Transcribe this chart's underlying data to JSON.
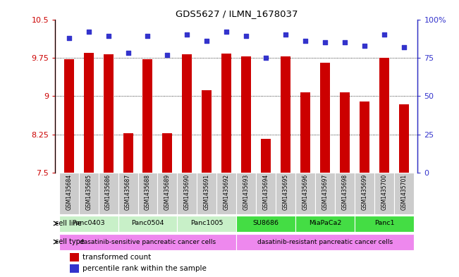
{
  "title": "GDS5627 / ILMN_1678037",
  "samples": [
    "GSM1435684",
    "GSM1435685",
    "GSM1435686",
    "GSM1435687",
    "GSM1435688",
    "GSM1435689",
    "GSM1435690",
    "GSM1435691",
    "GSM1435692",
    "GSM1435693",
    "GSM1435694",
    "GSM1435695",
    "GSM1435696",
    "GSM1435697",
    "GSM1435698",
    "GSM1435699",
    "GSM1435700",
    "GSM1435701"
  ],
  "bar_values": [
    9.72,
    9.85,
    9.82,
    8.28,
    9.72,
    8.27,
    9.82,
    9.12,
    9.83,
    9.78,
    8.17,
    9.78,
    9.08,
    9.65,
    9.08,
    8.9,
    9.75,
    8.84
  ],
  "percentile_values": [
    88,
    92,
    89,
    78,
    89,
    77,
    90,
    86,
    92,
    89,
    75,
    90,
    86,
    85,
    85,
    83,
    90,
    82
  ],
  "ylim_left": [
    7.5,
    10.5
  ],
  "ylim_right": [
    0,
    100
  ],
  "yticks_left": [
    7.5,
    8.25,
    9.0,
    9.75,
    10.5
  ],
  "yticks_left_labels": [
    "7.5",
    "8.25",
    "9",
    "9.75",
    "10.5"
  ],
  "yticks_right": [
    0,
    25,
    50,
    75,
    100
  ],
  "yticks_right_labels": [
    "0",
    "25",
    "50",
    "75",
    "100%"
  ],
  "bar_color": "#cc0000",
  "percentile_color": "#3333cc",
  "cell_lines": [
    {
      "name": "Panc0403",
      "start": 0,
      "end": 2,
      "color": "#c8f0c8"
    },
    {
      "name": "Panc0504",
      "start": 3,
      "end": 5,
      "color": "#c8f0c8"
    },
    {
      "name": "Panc1005",
      "start": 6,
      "end": 8,
      "color": "#c8f0c8"
    },
    {
      "name": "SU8686",
      "start": 9,
      "end": 11,
      "color": "#44dd44"
    },
    {
      "name": "MiaPaCa2",
      "start": 12,
      "end": 14,
      "color": "#44dd44"
    },
    {
      "name": "Panc1",
      "start": 15,
      "end": 17,
      "color": "#44dd44"
    }
  ],
  "cell_types": [
    {
      "name": "dasatinib-sensitive pancreatic cancer cells",
      "start": 0,
      "end": 8,
      "color": "#ee88ee"
    },
    {
      "name": "dasatinib-resistant pancreatic cancer cells",
      "start": 9,
      "end": 17,
      "color": "#ee88ee"
    }
  ],
  "tick_label_color_left": "#cc0000",
  "tick_label_color_right": "#3333cc",
  "sample_bg_color": "#cccccc",
  "bar_width": 0.5
}
